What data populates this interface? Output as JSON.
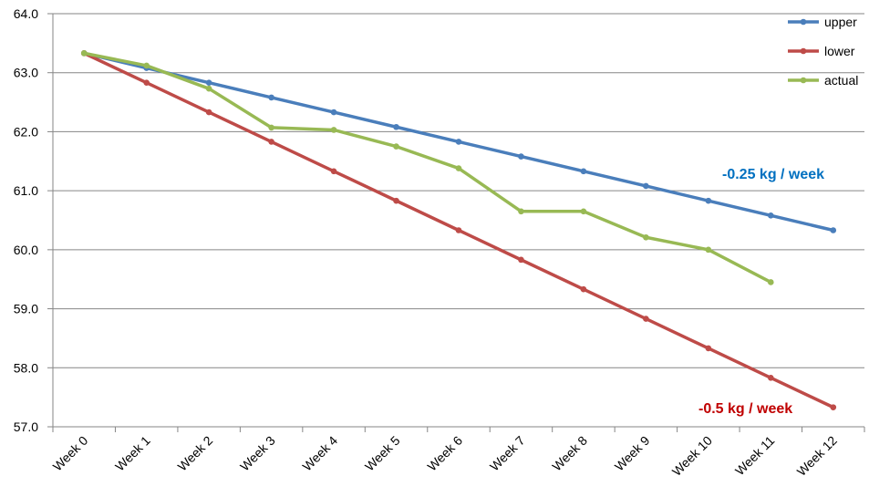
{
  "chart_data": {
    "type": "line",
    "categories": [
      "Week 0",
      "Week 1",
      "Week 2",
      "Week 3",
      "Week 4",
      "Week 5",
      "Week 6",
      "Week 7",
      "Week 8",
      "Week 9",
      "Week 10",
      "Week 11",
      "Week 12"
    ],
    "ylim": [
      57.0,
      64.0
    ],
    "yticks": [
      "57.0",
      "58.0",
      "59.0",
      "60.0",
      "61.0",
      "62.0",
      "63.0",
      "64.0"
    ],
    "grid": "horizontal",
    "legend_position": "top-right",
    "series": [
      {
        "name": "upper",
        "color": "#4a7ebb",
        "values": [
          63.33,
          63.08,
          62.83,
          62.58,
          62.33,
          62.08,
          61.83,
          61.58,
          61.33,
          61.08,
          60.83,
          60.58,
          60.33
        ]
      },
      {
        "name": "lower",
        "color": "#be4b48",
        "values": [
          63.33,
          62.83,
          62.33,
          61.83,
          61.33,
          60.83,
          60.33,
          59.83,
          59.33,
          58.83,
          58.33,
          57.83,
          57.33
        ]
      },
      {
        "name": "actual",
        "color": "#98b954",
        "values": [
          63.33,
          63.12,
          62.73,
          62.07,
          62.03,
          61.75,
          61.38,
          60.65,
          60.65,
          60.21,
          60.0,
          59.45,
          null
        ]
      }
    ],
    "annotations": [
      {
        "text": "-0.25 kg / week",
        "color": "#0070c0",
        "series": "upper"
      },
      {
        "text": "-0.5 kg / week",
        "color": "#c00000",
        "series": "lower"
      }
    ]
  }
}
